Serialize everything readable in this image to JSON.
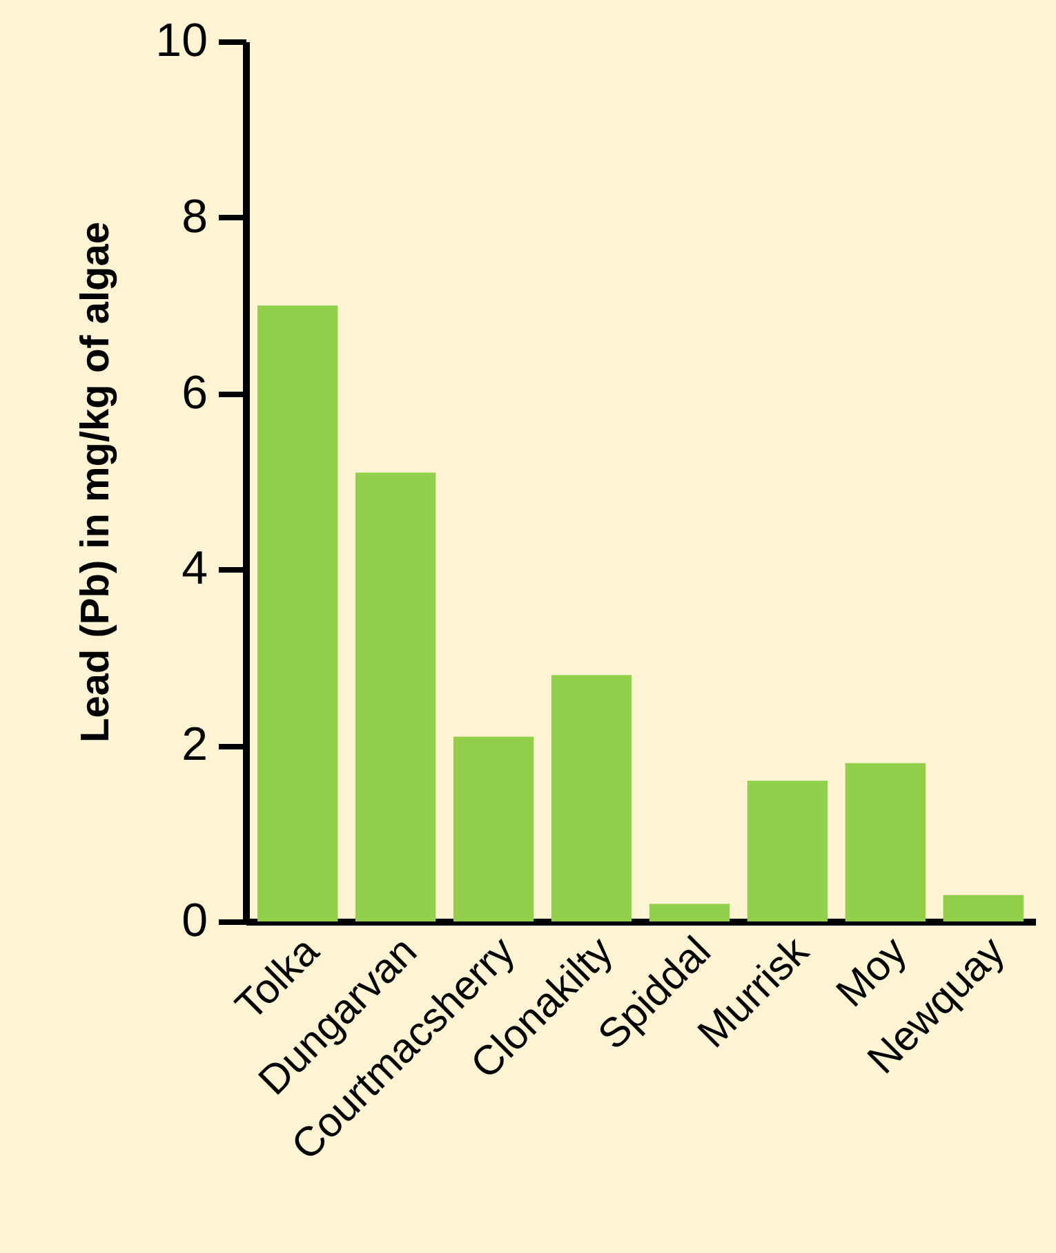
{
  "chart_data": {
    "type": "bar",
    "ylabel": "Lead (Pb) in mg/kg of algae",
    "categories": [
      "Tolka",
      "Dungarvan",
      "Courtmacsherry",
      "Clonakilty",
      "Spiddal",
      "Murrisk",
      "Moy",
      "Newquay"
    ],
    "values": [
      7.0,
      5.1,
      2.1,
      2.8,
      0.2,
      1.6,
      1.8,
      0.3
    ],
    "color": "#92d04c",
    "ylim": [
      0,
      10
    ],
    "yticks": [
      0,
      2,
      4,
      6,
      8,
      10
    ],
    "grid": false
  }
}
